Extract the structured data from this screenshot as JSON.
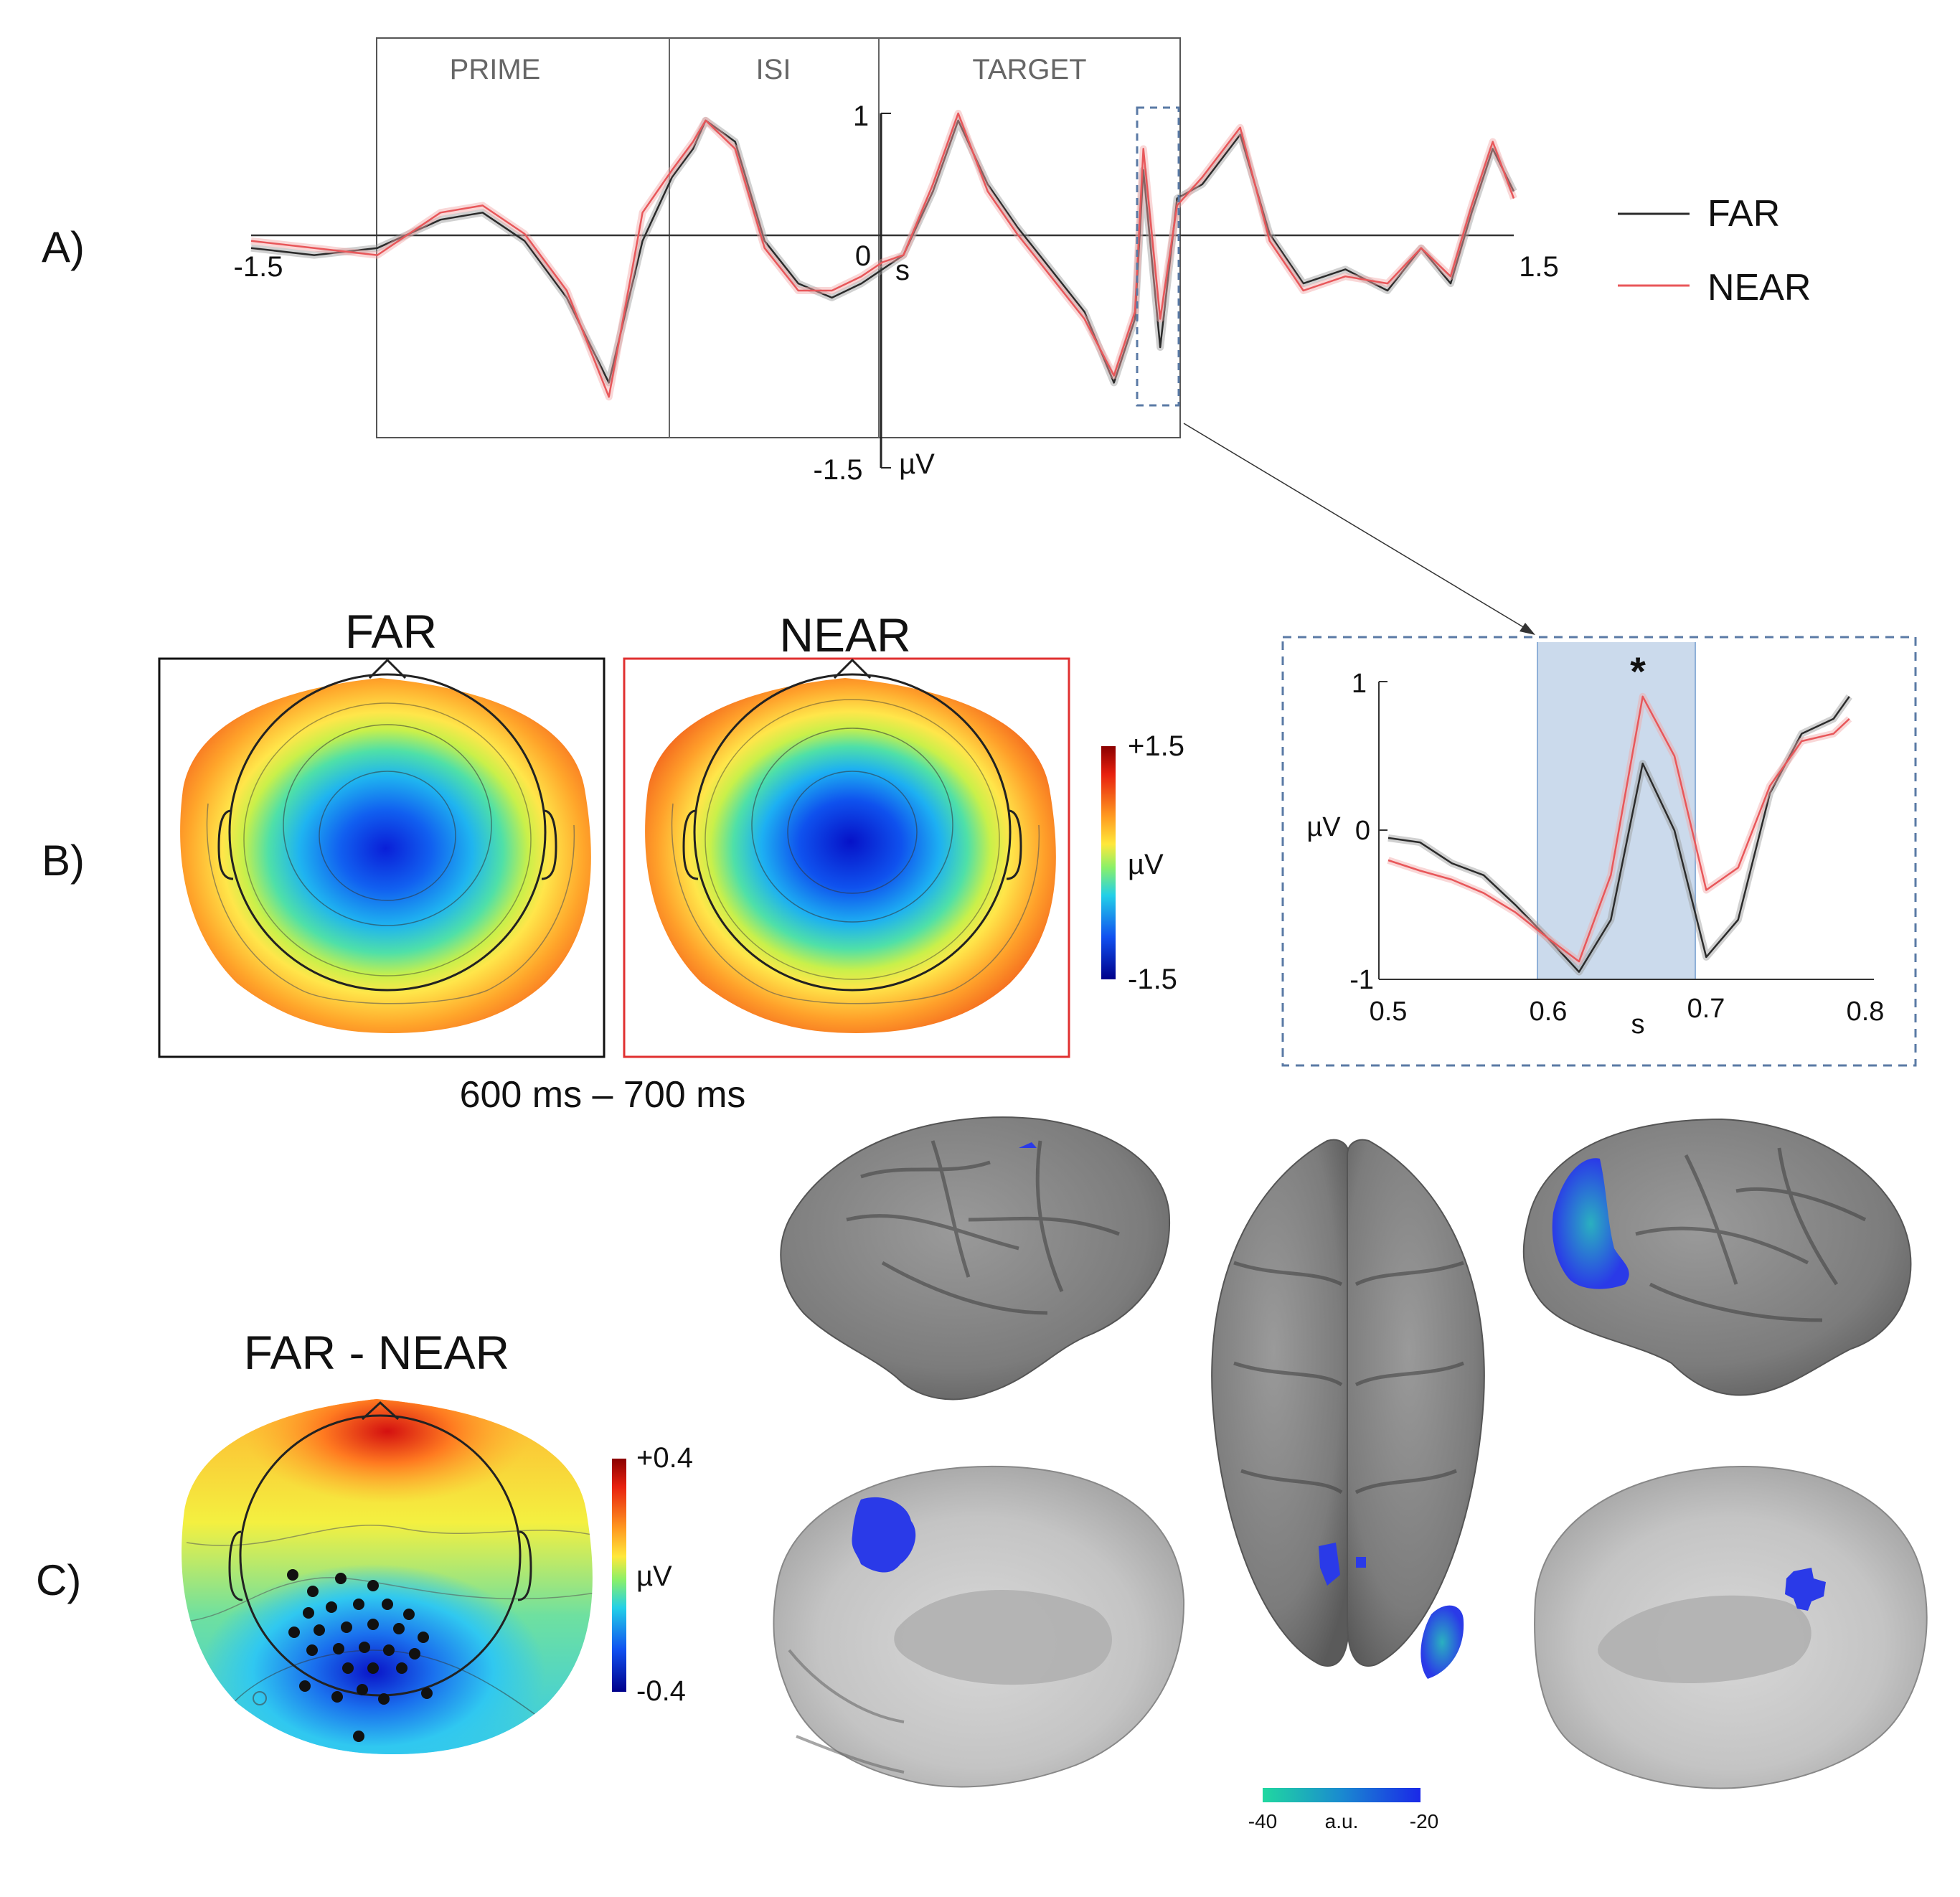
{
  "panel_labels": {
    "a": "A)",
    "b": "B)",
    "c": "C)"
  },
  "colors": {
    "far": "#2b2b2b",
    "near": "#e8575a",
    "near_band": "#f2a6a6",
    "far_band": "#9a9a9a",
    "zoom_box": "#5a7aa5",
    "window": "#b9cde6"
  },
  "panel_a": {
    "segments": [
      "PRIME",
      "ISI",
      "TARGET"
    ],
    "x_min_label": "-1.5",
    "x_max_label": "1.5",
    "zero_label": "0",
    "x_unit": "s",
    "y_max_label": "1",
    "y_min_label": "-1.5",
    "y_unit": "µV"
  },
  "legend": [
    {
      "label": "FAR",
      "color": "#2b2b2b"
    },
    {
      "label": "NEAR",
      "color": "#e8575a"
    }
  ],
  "panel_b": {
    "far_title": "FAR",
    "near_title": "NEAR",
    "time_window": "600 ms – 700 ms",
    "colorbar": {
      "max_label": "+1.5",
      "unit": "µV",
      "min_label": "-1.5"
    }
  },
  "zoom": {
    "asterisk": "*",
    "y_ticks": [
      "1",
      "0",
      "-1"
    ],
    "y_unit": "µV",
    "x_ticks": [
      "0.5",
      "0.6",
      "0.7",
      "0.8"
    ],
    "x_unit": "s"
  },
  "panel_c": {
    "title": "FAR - NEAR",
    "colorbar": {
      "max_label": "+0.4",
      "unit": "µV",
      "min_label": "-0.4"
    },
    "source_colorbar": {
      "min_label": "-40",
      "unit": "a.u.",
      "max_label": "-20"
    }
  },
  "chart_data": [
    {
      "type": "line",
      "xlim": [
        -1.5,
        1.5
      ],
      "ylim": [
        -1.5,
        1
      ],
      "series": [
        {
          "name": "FAR",
          "x": [
            -1.5,
            -1.35,
            -1.2,
            -1.05,
            -0.95,
            -0.85,
            -0.75,
            -0.65,
            -0.57,
            -0.5,
            -0.45,
            -0.42,
            -0.35,
            -0.28,
            -0.2,
            -0.12,
            -0.05,
            0,
            0.05,
            0.12,
            0.18,
            0.25,
            0.32,
            0.4,
            0.48,
            0.55,
            0.6,
            0.62,
            0.66,
            0.7,
            0.76,
            0.85,
            0.92,
            1.0,
            1.1,
            1.2,
            1.28,
            1.35,
            1.4,
            1.45,
            1.5
          ],
          "y": [
            0.05,
            0.0,
            0.05,
            0.25,
            0.3,
            0.1,
            -0.3,
            -0.9,
            0.1,
            0.55,
            0.75,
            0.95,
            0.8,
            0.1,
            -0.2,
            -0.3,
            -0.2,
            -0.1,
            0.0,
            0.45,
            0.95,
            0.5,
            0.2,
            -0.1,
            -0.4,
            -0.9,
            -0.45,
            0.6,
            -0.65,
            0.4,
            0.5,
            0.85,
            0.15,
            -0.2,
            -0.1,
            -0.25,
            0.05,
            -0.2,
            0.3,
            0.75,
            0.45
          ]
        },
        {
          "name": "NEAR",
          "x": [
            -1.5,
            -1.35,
            -1.2,
            -1.05,
            -0.95,
            -0.85,
            -0.75,
            -0.65,
            -0.57,
            -0.5,
            -0.45,
            -0.42,
            -0.35,
            -0.28,
            -0.2,
            -0.12,
            -0.05,
            0,
            0.05,
            0.12,
            0.18,
            0.25,
            0.32,
            0.4,
            0.48,
            0.55,
            0.6,
            0.62,
            0.66,
            0.7,
            0.76,
            0.85,
            0.92,
            1.0,
            1.1,
            1.2,
            1.28,
            1.35,
            1.4,
            1.45,
            1.5
          ],
          "y": [
            0.1,
            0.05,
            0.0,
            0.3,
            0.35,
            0.15,
            -0.25,
            -1.0,
            0.3,
            0.6,
            0.8,
            0.95,
            0.75,
            0.05,
            -0.25,
            -0.25,
            -0.15,
            -0.05,
            0.0,
            0.5,
            1.0,
            0.45,
            0.15,
            -0.15,
            -0.45,
            -0.85,
            -0.4,
            0.75,
            -0.45,
            0.35,
            0.55,
            0.9,
            0.1,
            -0.25,
            -0.15,
            -0.2,
            0.05,
            -0.15,
            0.35,
            0.8,
            0.4
          ]
        }
      ]
    },
    {
      "type": "line",
      "xlim": [
        0.5,
        0.8
      ],
      "ylim": [
        -1,
        1
      ],
      "highlight_x": [
        0.6,
        0.7
      ],
      "series": [
        {
          "name": "FAR",
          "x": [
            0.5,
            0.52,
            0.54,
            0.56,
            0.58,
            0.6,
            0.62,
            0.64,
            0.66,
            0.68,
            0.7,
            0.72,
            0.74,
            0.76,
            0.78,
            0.79
          ],
          "y": [
            -0.05,
            -0.08,
            -0.22,
            -0.3,
            -0.5,
            -0.72,
            -0.95,
            -0.6,
            0.45,
            0.0,
            -0.85,
            -0.6,
            0.25,
            0.65,
            0.75,
            0.9
          ]
        },
        {
          "name": "NEAR",
          "x": [
            0.5,
            0.52,
            0.54,
            0.56,
            0.58,
            0.6,
            0.62,
            0.64,
            0.66,
            0.68,
            0.7,
            0.72,
            0.74,
            0.76,
            0.78,
            0.79
          ],
          "y": [
            -0.2,
            -0.27,
            -0.33,
            -0.42,
            -0.55,
            -0.72,
            -0.88,
            -0.3,
            0.9,
            0.5,
            -0.4,
            -0.25,
            0.3,
            0.6,
            0.65,
            0.75
          ]
        }
      ]
    }
  ]
}
